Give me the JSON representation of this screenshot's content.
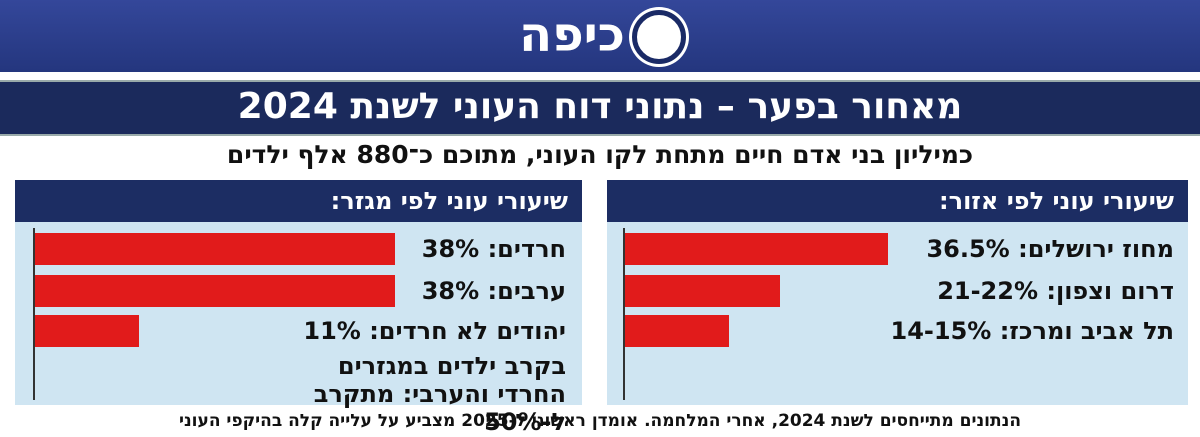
{
  "header": {
    "logo": "כיפה",
    "title": "מאחור בפער – נתוני דוח העוני לשנת 2024",
    "subtitle": "כמיליון בני אדם חיים מתחת לקו העוני, מתוכם כ־880 אלף ילדים"
  },
  "chart_data": [
    {
      "type": "bar",
      "orientation": "horizontal",
      "title": "שיעורי עוני לפי אזור:",
      "categories": [
        "מחוז ירושלים:",
        "דרום וצפון:",
        "תל אביב ומרכז:"
      ],
      "values": [
        36.5,
        21.5,
        14.5
      ],
      "value_labels": [
        "36.5%",
        "21-22%",
        "14-15%"
      ],
      "color": "#e11b1b",
      "xlim": [
        0,
        50
      ]
    },
    {
      "type": "bar",
      "orientation": "horizontal",
      "title": "שיעורי עוני לפי מגזר:",
      "categories": [
        "חרדים:",
        "ערבים:",
        "יהודים לא חרדים:"
      ],
      "values": [
        38,
        38,
        11
      ],
      "value_labels": [
        "38%",
        "38%",
        "11%"
      ],
      "color": "#e11b1b",
      "xlim": [
        0,
        50
      ],
      "note": "בקרב ילדים במגזרים החרדי והערבי: מתקרב ל-50%"
    }
  ],
  "footer": "הנתונים מתייחסים לשנת 2024, אחרי המלחמה. אומדן ראשוני ל-2025 מצביע על עלייה קלה בהיקפי העוני"
}
